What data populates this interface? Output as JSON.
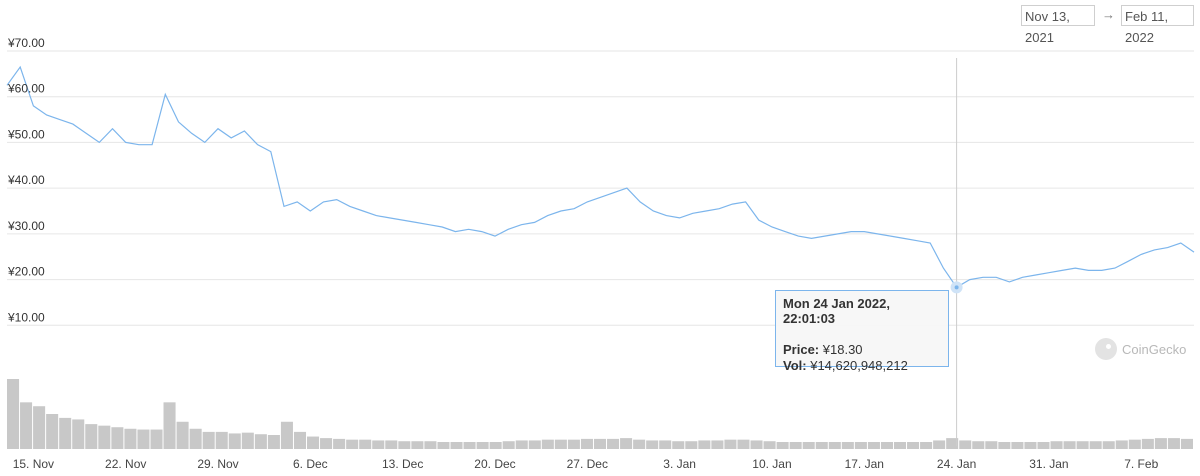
{
  "range": {
    "from": "Nov 13, 2021",
    "arrow": "→",
    "to": "Feb 11, 2022"
  },
  "tooltip": {
    "date": "Mon 24 Jan 2022, 22:01:03",
    "price_label": "Price:",
    "price_value": "¥18.30",
    "vol_label": "Vol:",
    "vol_value": "¥14,620,948,212"
  },
  "watermark": {
    "text": "CoinGecko"
  },
  "colors": {
    "line": "#7cb5ec",
    "volume": "#c8c8c8",
    "grid": "#e6e6e6",
    "crosshair": "#cccccc"
  },
  "chart_data": {
    "type": "line",
    "title": "",
    "xlabel": "",
    "ylabel": "",
    "currency": "¥",
    "ylim": [
      0,
      70
    ],
    "yticks": [
      "¥10.00",
      "¥20.00",
      "¥30.00",
      "¥40.00",
      "¥50.00",
      "¥60.00",
      "¥70.00"
    ],
    "ytick_values": [
      10,
      20,
      30,
      40,
      50,
      60,
      70
    ],
    "xlim": [
      "2021-11-13",
      "2022-02-11"
    ],
    "xticks": [
      "15. Nov",
      "22. Nov",
      "29. Nov",
      "6. Dec",
      "13. Dec",
      "20. Dec",
      "27. Dec",
      "3. Jan",
      "10. Jan",
      "17. Jan",
      "24. Jan",
      "31. Jan",
      "7. Feb"
    ],
    "xtick_dates": [
      "2021-11-15",
      "2021-11-22",
      "2021-11-29",
      "2021-12-06",
      "2021-12-13",
      "2021-12-20",
      "2021-12-27",
      "2022-01-03",
      "2022-01-10",
      "2022-01-17",
      "2022-01-24",
      "2022-01-31",
      "2022-02-07"
    ],
    "grid": true,
    "legend": "none",
    "highlight": {
      "x": "2022-01-24",
      "y": 18.3
    },
    "series": [
      {
        "x": [
          "2021-11-13",
          "2021-11-14",
          "2021-11-15",
          "2021-11-16",
          "2021-11-17",
          "2021-11-18",
          "2021-11-19",
          "2021-11-20",
          "2021-11-21",
          "2021-11-22",
          "2021-11-23",
          "2021-11-24",
          "2021-11-25",
          "2021-11-26",
          "2021-11-27",
          "2021-11-28",
          "2021-11-29",
          "2021-11-30",
          "2021-12-01",
          "2021-12-02",
          "2021-12-03",
          "2021-12-04",
          "2021-12-05",
          "2021-12-06",
          "2021-12-07",
          "2021-12-08",
          "2021-12-09",
          "2021-12-10",
          "2021-12-11",
          "2021-12-12",
          "2021-12-13",
          "2021-12-14",
          "2021-12-15",
          "2021-12-16",
          "2021-12-17",
          "2021-12-18",
          "2021-12-19",
          "2021-12-20",
          "2021-12-21",
          "2021-12-22",
          "2021-12-23",
          "2021-12-24",
          "2021-12-25",
          "2021-12-26",
          "2021-12-27",
          "2021-12-28",
          "2021-12-29",
          "2021-12-30",
          "2021-12-31",
          "2022-01-01",
          "2022-01-02",
          "2022-01-03",
          "2022-01-04",
          "2022-01-05",
          "2022-01-06",
          "2022-01-07",
          "2022-01-08",
          "2022-01-09",
          "2022-01-10",
          "2022-01-11",
          "2022-01-12",
          "2022-01-13",
          "2022-01-14",
          "2022-01-15",
          "2022-01-16",
          "2022-01-17",
          "2022-01-18",
          "2022-01-19",
          "2022-01-20",
          "2022-01-21",
          "2022-01-22",
          "2022-01-23",
          "2022-01-24",
          "2022-01-25",
          "2022-01-26",
          "2022-01-27",
          "2022-01-28",
          "2022-01-29",
          "2022-01-30",
          "2022-01-31",
          "2022-02-01",
          "2022-02-02",
          "2022-02-03",
          "2022-02-04",
          "2022-02-05",
          "2022-02-06",
          "2022-02-07",
          "2022-02-08",
          "2022-02-09",
          "2022-02-10",
          "2022-02-11"
        ],
        "values": [
          62.5,
          66.5,
          58,
          56,
          55,
          54,
          52,
          50,
          53,
          50,
          49.5,
          49.5,
          60.5,
          54.5,
          52,
          50,
          53,
          51,
          52.5,
          49.5,
          48,
          36,
          37,
          35,
          37,
          37.5,
          36,
          35,
          34,
          33.5,
          33,
          32.5,
          32,
          31.5,
          30.5,
          31,
          30.5,
          29.5,
          31,
          32,
          32.5,
          34,
          35,
          35.5,
          37,
          38,
          39,
          40,
          37,
          35,
          34,
          33.5,
          34.5,
          35,
          35.5,
          36.5,
          37,
          33,
          31.5,
          30.5,
          29.5,
          29,
          29.5,
          30,
          30.5,
          30.5,
          30,
          29.5,
          29,
          28.5,
          28,
          22.5,
          18.3,
          20,
          20.5,
          20.5,
          19.5,
          20.5,
          21,
          21.5,
          22,
          22.5,
          22,
          22,
          22.5,
          24,
          25.5,
          26.5,
          27,
          28,
          26
        ]
      }
    ],
    "volume": [
      90,
      60,
      55,
      45,
      40,
      38,
      32,
      30,
      28,
      26,
      25,
      25,
      60,
      35,
      26,
      22,
      22,
      20,
      21,
      19,
      18,
      35,
      22,
      16,
      14,
      13,
      12,
      12,
      11,
      11,
      10,
      10,
      10,
      9,
      9,
      9,
      9,
      9,
      10,
      11,
      11,
      12,
      12,
      12,
      13,
      13,
      13,
      14,
      12,
      11,
      11,
      10,
      10,
      11,
      11,
      12,
      12,
      11,
      10,
      9,
      9,
      9,
      9,
      9,
      9,
      9,
      9,
      9,
      9,
      9,
      9,
      11,
      14,
      11,
      10,
      10,
      9,
      9,
      9,
      9,
      10,
      10,
      10,
      10,
      10,
      11,
      12,
      13,
      14,
      14,
      13
    ]
  }
}
